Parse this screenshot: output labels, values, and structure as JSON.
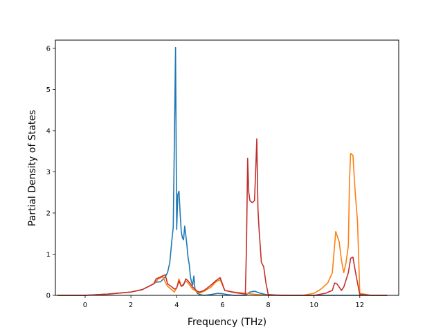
{
  "chart_data": {
    "type": "line",
    "title": "",
    "xlabel": "Frequency (THz)",
    "ylabel": "Partial Density of States",
    "xlim": [
      -1.3,
      13.7
    ],
    "ylim": [
      0,
      6.2
    ],
    "xticks": [
      0,
      2,
      4,
      6,
      8,
      10,
      12
    ],
    "yticks": [
      0,
      1,
      2,
      3,
      4,
      5,
      6
    ],
    "grid": false,
    "series": [
      {
        "color": "#1f77b4",
        "x": [
          -1.2,
          0,
          1,
          2,
          2.5,
          3.0,
          3.1,
          3.3,
          3.5,
          3.6,
          3.7,
          3.8,
          3.85,
          3.9,
          3.95,
          4.0,
          4.05,
          4.1,
          4.15,
          4.2,
          4.25,
          4.3,
          4.35,
          4.4,
          4.45,
          4.5,
          4.55,
          4.6,
          4.65,
          4.7,
          4.75,
          4.8,
          4.85,
          4.9,
          5.0,
          5.2,
          5.5,
          5.8,
          6.0,
          6.2,
          6.5,
          7.0,
          7.2,
          7.4,
          7.6,
          7.8,
          8.0,
          9.0,
          10.0,
          11.0,
          12.0,
          13.2
        ],
        "y": [
          0,
          0.0,
          0.03,
          0.08,
          0.14,
          0.28,
          0.32,
          0.33,
          0.45,
          0.55,
          0.8,
          1.4,
          1.65,
          3.8,
          6.02,
          1.6,
          2.45,
          2.53,
          2.0,
          1.55,
          1.4,
          1.35,
          1.68,
          1.45,
          1.2,
          0.9,
          0.75,
          0.45,
          0.32,
          0.25,
          0.47,
          0.15,
          0.1,
          0.05,
          0.02,
          0.0,
          0.02,
          0.05,
          0.04,
          0.02,
          0.0,
          0.0,
          0.08,
          0.1,
          0.06,
          0.03,
          0.01,
          0.0,
          0.0,
          0.0,
          0.0,
          0.0
        ]
      },
      {
        "color": "#ff7f0e",
        "x": [
          -1.2,
          0,
          1,
          2,
          2.5,
          3.0,
          3.2,
          3.4,
          3.5,
          3.6,
          3.8,
          3.9,
          4.0,
          4.1,
          4.2,
          4.3,
          4.4,
          4.5,
          4.6,
          4.7,
          4.8,
          4.9,
          5.0,
          5.2,
          5.5,
          5.7,
          5.9,
          6.1,
          6.5,
          7.0,
          7.5,
          8.0,
          9.0,
          9.5,
          10.0,
          10.3,
          10.6,
          10.8,
          10.95,
          11.1,
          11.2,
          11.3,
          11.4,
          11.5,
          11.55,
          11.6,
          11.7,
          11.8,
          11.9,
          12.0,
          12.5,
          13.2
        ],
        "y": [
          0,
          0.0,
          0.03,
          0.08,
          0.14,
          0.28,
          0.4,
          0.45,
          0.32,
          0.22,
          0.13,
          0.08,
          0.18,
          0.4,
          0.22,
          0.28,
          0.35,
          0.3,
          0.22,
          0.15,
          0.12,
          0.08,
          0.05,
          0.1,
          0.2,
          0.32,
          0.38,
          0.12,
          0.08,
          0.05,
          0.02,
          0.0,
          0.0,
          0.0,
          0.05,
          0.15,
          0.3,
          0.55,
          1.55,
          1.3,
          0.85,
          0.55,
          0.8,
          1.2,
          2.8,
          3.45,
          3.4,
          2.5,
          1.8,
          0.05,
          0.0,
          0.0
        ]
      },
      {
        "color": "#c0302b",
        "x": [
          -1.2,
          0,
          1,
          2,
          2.5,
          3.0,
          3.1,
          3.3,
          3.5,
          3.6,
          3.8,
          3.9,
          4.0,
          4.1,
          4.2,
          4.3,
          4.4,
          4.5,
          4.6,
          4.7,
          4.8,
          4.9,
          5.0,
          5.2,
          5.5,
          5.7,
          5.9,
          6.1,
          6.5,
          7.0,
          7.05,
          7.1,
          7.15,
          7.2,
          7.3,
          7.4,
          7.45,
          7.5,
          7.55,
          7.6,
          7.65,
          7.7,
          7.75,
          7.8,
          7.9,
          8.0,
          8.5,
          9.0,
          10.0,
          10.5,
          10.8,
          10.9,
          11.0,
          11.1,
          11.2,
          11.3,
          11.5,
          11.6,
          11.7,
          11.8,
          11.9,
          12.0,
          12.5,
          13.2
        ],
        "y": [
          0,
          0.0,
          0.03,
          0.08,
          0.14,
          0.28,
          0.4,
          0.45,
          0.5,
          0.28,
          0.2,
          0.15,
          0.18,
          0.35,
          0.22,
          0.25,
          0.4,
          0.35,
          0.28,
          0.2,
          0.15,
          0.1,
          0.08,
          0.12,
          0.25,
          0.35,
          0.43,
          0.12,
          0.07,
          0.03,
          1.2,
          3.33,
          2.5,
          2.3,
          2.25,
          2.3,
          3.0,
          3.8,
          2.1,
          1.6,
          1.2,
          0.8,
          0.75,
          0.7,
          0.3,
          0.02,
          0.0,
          0.0,
          0.0,
          0.05,
          0.12,
          0.3,
          0.28,
          0.2,
          0.12,
          0.2,
          0.55,
          0.9,
          0.93,
          0.6,
          0.3,
          0.02,
          0.0,
          0.0
        ]
      }
    ]
  }
}
